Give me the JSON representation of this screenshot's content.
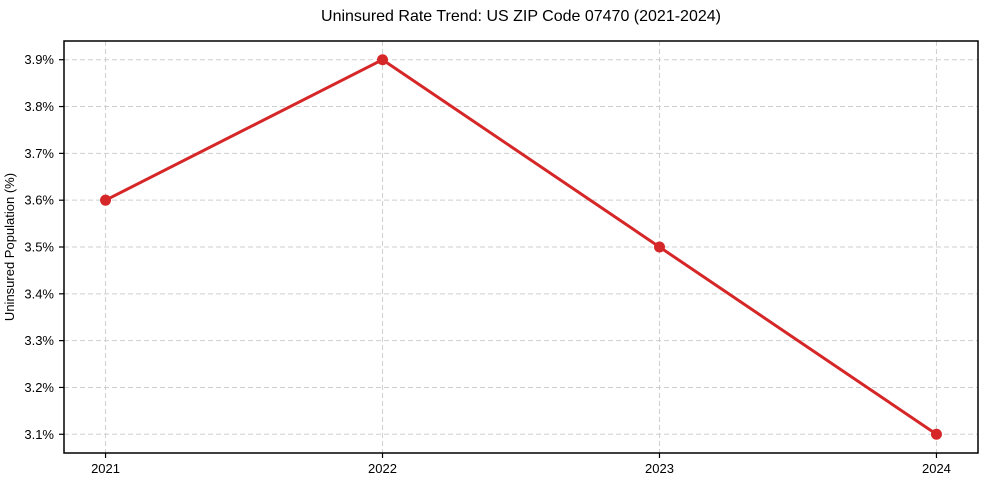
{
  "chart_data": {
    "type": "line",
    "title": "Uninsured Rate Trend: US ZIP Code 07470 (2021-2024)",
    "xlabel": "",
    "ylabel": "Uninsured Population (%)",
    "x": [
      2021,
      2022,
      2023,
      2024
    ],
    "values": [
      3.6,
      3.9,
      3.5,
      3.1
    ],
    "x_tick_labels": [
      "2021",
      "2022",
      "2023",
      "2024"
    ],
    "y_tick_values": [
      3.1,
      3.2,
      3.3,
      3.4,
      3.5,
      3.6,
      3.7,
      3.8,
      3.9
    ],
    "y_tick_labels": [
      "3.1%",
      "3.2%",
      "3.3%",
      "3.4%",
      "3.5%",
      "3.6%",
      "3.7%",
      "3.8%",
      "3.9%"
    ],
    "xlim": [
      2020.85,
      2024.15
    ],
    "ylim": [
      3.06,
      3.94
    ],
    "grid": true,
    "grid_style": "dashed",
    "legend": "none",
    "colors": {
      "line": "#d62728",
      "marker": "#d62728",
      "grid": "#cfcfcf",
      "axis": "#000000",
      "background": "#ffffff",
      "text": "#000000"
    }
  }
}
